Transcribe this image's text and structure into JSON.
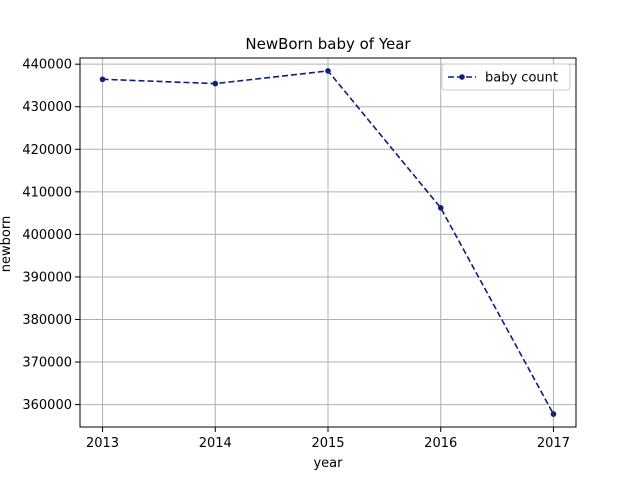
{
  "chart_data": {
    "type": "line",
    "title": "NewBorn baby of Year",
    "xlabel": "year",
    "ylabel": "newborn",
    "x": [
      2013,
      2014,
      2015,
      2016,
      2017
    ],
    "series": [
      {
        "name": "baby count",
        "values": [
          436455,
          435435,
          438420,
          406243,
          357771
        ],
        "color": "#0d1f7a",
        "line_style": "dashed",
        "marker": "circle"
      }
    ],
    "x_ticks": [
      "2013",
      "2014",
      "2015",
      "2016",
      "2017"
    ],
    "y_ticks": [
      "360000",
      "370000",
      "380000",
      "390000",
      "400000",
      "410000",
      "420000",
      "430000",
      "440000"
    ],
    "xlim": [
      2012.8,
      2017.2
    ],
    "ylim": [
      354738,
      441453
    ],
    "grid": true,
    "legend_position": "top-right"
  }
}
